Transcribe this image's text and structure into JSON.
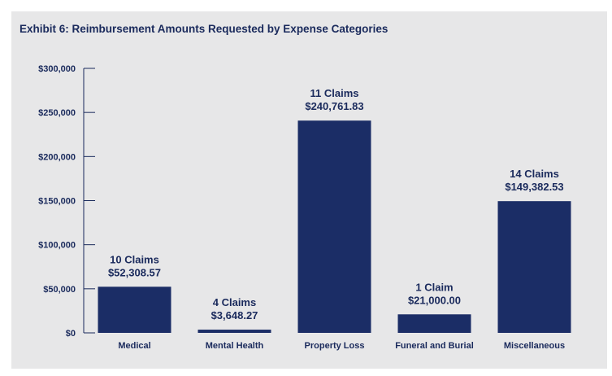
{
  "title": "Exhibit 6: Reimbursement Amounts Requested by Expense Categories",
  "colors": {
    "bar": "#1b2d66",
    "axis": "#1a2a5c",
    "panel": "#e7e7e8",
    "text": "#1a2a5c"
  },
  "chart_data": {
    "type": "bar",
    "title": "Exhibit 6: Reimbursement Amounts Requested by Expense Categories",
    "xlabel": "",
    "ylabel": "",
    "ylim": [
      0,
      300000
    ],
    "grid": false,
    "yticks": [
      0,
      50000,
      100000,
      150000,
      200000,
      250000,
      300000
    ],
    "ytick_labels": [
      "$0",
      "$50,000",
      "$100,000",
      "$150,000",
      "$200,000",
      "$250,000",
      "$300,000"
    ],
    "categories": [
      "Medical",
      "Mental Health",
      "Property Loss",
      "Funeral and Burial",
      "Miscellaneous"
    ],
    "values": [
      52308.57,
      3648.27,
      240761.83,
      21000.0,
      149382.53
    ],
    "claims_labels": [
      "10 Claims",
      "4 Claims",
      "11 Claims",
      "1 Claim",
      "14 Claims"
    ],
    "value_labels": [
      "$52,308.57",
      "$3,648.27",
      "$240,761.83",
      "$21,000.00",
      "$149,382.53"
    ]
  }
}
